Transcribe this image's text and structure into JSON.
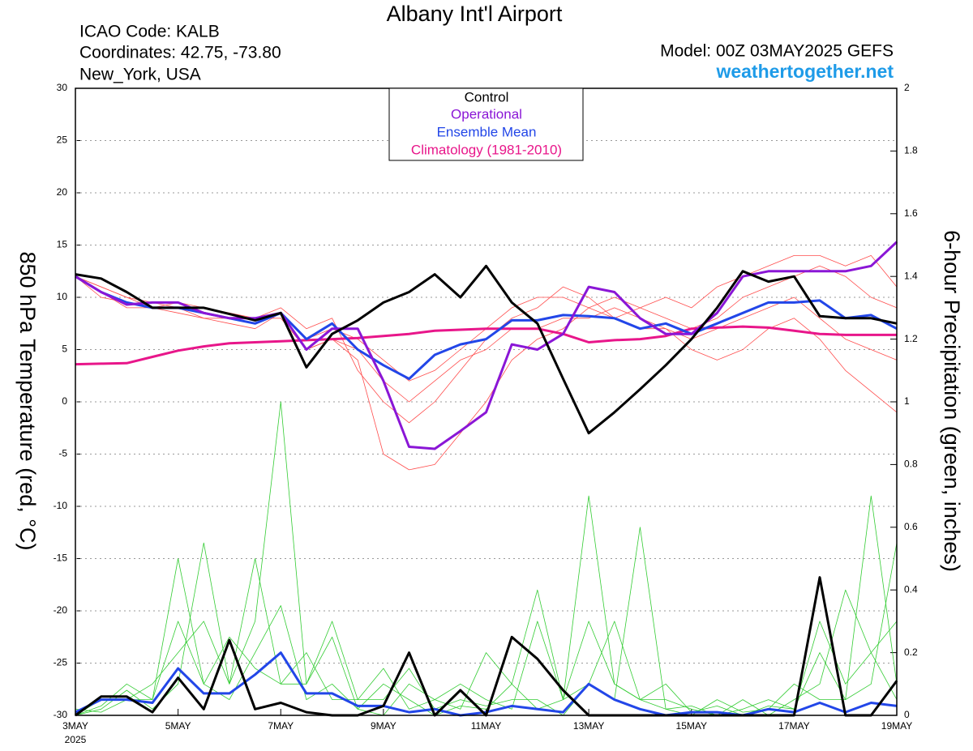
{
  "chart_data": {
    "type": "line",
    "title": "Albany Int'l Airport",
    "info": [
      "ICAO Code: KALB",
      "Coordinates: 42.75, -73.80",
      "New_York, USA"
    ],
    "model": "Model: 00Z 03MAY2025 GEFS",
    "site": "weathertogether.net",
    "ylabel": "850 hPa Temperature (red, °C)",
    "y2label": "6-hour Precipitation (green, inches)",
    "year_label": "2025",
    "grid": true,
    "xlim": [
      0,
      16
    ],
    "xticks": [
      {
        "value": 0,
        "label": "3MAY"
      },
      {
        "value": 2,
        "label": "5MAY"
      },
      {
        "value": 4,
        "label": "7MAY"
      },
      {
        "value": 6,
        "label": "9MAY"
      },
      {
        "value": 8,
        "label": "11MAY"
      },
      {
        "value": 10,
        "label": "13MAY"
      },
      {
        "value": 12,
        "label": "15MAY"
      },
      {
        "value": 14,
        "label": "17MAY"
      },
      {
        "value": 16,
        "label": "19MAY"
      }
    ],
    "ylim": [
      -30,
      30
    ],
    "yticks": [
      -30,
      -25,
      -20,
      -15,
      -10,
      -5,
      0,
      5,
      10,
      15,
      20,
      25,
      30
    ],
    "y2lim": [
      0,
      2
    ],
    "y2ticks": [
      0,
      0.2,
      0.4,
      0.6,
      0.8,
      1,
      1.2,
      1.4,
      1.6,
      1.8,
      2
    ],
    "x": [
      0,
      0.5,
      1,
      1.5,
      2,
      2.5,
      3,
      3.5,
      4,
      4.5,
      5,
      5.5,
      6,
      6.5,
      7,
      7.5,
      8,
      8.5,
      9,
      9.5,
      10,
      10.5,
      11,
      11.5,
      12,
      12.5,
      13,
      13.5,
      14,
      14.5,
      15,
      15.5,
      16
    ],
    "series": [
      {
        "color": "#ff4d4d",
        "values": [
          12,
          10,
          9.5,
          9,
          9,
          8.5,
          8,
          8,
          8,
          5,
          6,
          4,
          -5,
          -6.5,
          -6,
          -3,
          0,
          4,
          6,
          7,
          9,
          10,
          9,
          8,
          7,
          8,
          10,
          11,
          12,
          13,
          12,
          10,
          9
        ]
      },
      {
        "color": "#ff4d4d",
        "values": [
          12,
          11,
          10,
          9,
          8.5,
          8,
          8,
          7.5,
          8.5,
          6,
          7,
          6,
          4,
          2,
          3,
          5,
          7,
          9,
          10,
          10,
          9,
          8,
          7,
          7,
          6,
          7,
          8,
          9,
          10,
          8,
          6,
          5,
          4
        ]
      },
      {
        "color": "#ff4d4d",
        "values": [
          12,
          10.5,
          9,
          9,
          9.5,
          9,
          8.5,
          8,
          9,
          7,
          8,
          3,
          0,
          -2,
          0,
          3,
          6,
          8,
          9,
          11,
          10,
          8,
          9,
          10,
          9,
          11,
          12,
          13,
          14,
          14,
          13,
          14,
          11
        ]
      },
      {
        "color": "#ff4d4d",
        "values": [
          12,
          11,
          10,
          9.5,
          9,
          8,
          7.5,
          7,
          8.5,
          5,
          6,
          5,
          2,
          0,
          2,
          4,
          5,
          7,
          7,
          8,
          8,
          9,
          8,
          7,
          5,
          4,
          5,
          7,
          8,
          6,
          3,
          1,
          -1
        ]
      },
      {
        "color": "#33cc33",
        "axis": "y2",
        "values": [
          0,
          0.03,
          0.1,
          0.05,
          0.5,
          0.1,
          0.05,
          0.2,
          0.35,
          0.05,
          0.1,
          0.02,
          0.1,
          0.05,
          0,
          0.03,
          0.02,
          0.1,
          0.02,
          0.05,
          0.7,
          0.1,
          0.05,
          0.02,
          0.03,
          0,
          0.02,
          0.05,
          0.02,
          0.3,
          0.1,
          0.2,
          0.05
        ]
      },
      {
        "color": "#33cc33",
        "axis": "y2",
        "values": [
          0,
          0.05,
          0.05,
          0.1,
          0.2,
          0.3,
          0.1,
          0.5,
          0.1,
          0.2,
          0.05,
          0.05,
          0.15,
          0.02,
          0.05,
          0.1,
          0.05,
          0.02,
          0.3,
          0.05,
          0.1,
          0.05,
          0.6,
          0.02,
          0,
          0.05,
          0.01,
          0.02,
          0.1,
          0.05,
          0.05,
          0.7,
          0.1
        ]
      },
      {
        "color": "#33cc33",
        "axis": "y2",
        "values": [
          0,
          0.02,
          0.08,
          0.02,
          0.1,
          0.55,
          0.1,
          0.3,
          1.0,
          0.1,
          0.3,
          0.05,
          0.05,
          0.15,
          0.02,
          0.05,
          0.03,
          0.05,
          0.05,
          0,
          0.1,
          0.3,
          0.05,
          0.05,
          0.02,
          0,
          0.05,
          0,
          0.05,
          0.1,
          0.4,
          0.2,
          0.3
        ]
      },
      {
        "color": "#33cc33",
        "axis": "y2",
        "values": [
          0.02,
          0.01,
          0.05,
          0.05,
          0.3,
          0.1,
          0.25,
          0.15,
          0.1,
          0.1,
          0.25,
          0.02,
          0,
          0.1,
          0.05,
          0.02,
          0.2,
          0.1,
          0.4,
          0.05,
          0.3,
          0.1,
          0.05,
          0.1,
          0.01,
          0.03,
          0,
          0.03,
          0.02,
          0.2,
          0.05,
          0.1,
          0.55
        ]
      },
      {
        "color": "#2246e8",
        "axis": "y2",
        "values": [
          0.01,
          0.05,
          0.05,
          0.04,
          0.15,
          0.07,
          0.07,
          0.13,
          0.2,
          0.07,
          0.07,
          0.03,
          0.03,
          0.01,
          0.02,
          0,
          0.01,
          0.03,
          0.02,
          0.01,
          0.1,
          0.05,
          0.02,
          0,
          0.01,
          0.01,
          0,
          0.02,
          0.01,
          0.04,
          0.01,
          0.04,
          0.03
        ]
      },
      {
        "color": "#000000",
        "axis": "y2",
        "values": [
          0,
          0.06,
          0.06,
          0.01,
          0.12,
          0.02,
          0.24,
          0.02,
          0.04,
          0.01,
          0,
          0,
          0.03,
          0.2,
          0,
          0.08,
          0,
          0.25,
          0.18,
          0.08,
          0,
          0,
          0,
          0,
          0,
          0,
          0,
          0,
          0,
          0.44,
          0,
          0,
          0.11
        ]
      },
      {
        "name": "Climatology (1981-2010)",
        "color": "#e8168a",
        "values": [
          3.6,
          3.65,
          3.7,
          4.3,
          4.9,
          5.3,
          5.6,
          5.7,
          5.8,
          5.9,
          6.0,
          6.1,
          6.3,
          6.5,
          6.8,
          6.9,
          7.0,
          7.0,
          7.0,
          6.5,
          5.7,
          5.9,
          6.0,
          6.3,
          7.0,
          7.1,
          7.2,
          7.1,
          6.8,
          6.5,
          6.4,
          6.4,
          6.4
        ]
      },
      {
        "name": "Ensemble Mean",
        "color": "#2246e8",
        "values": [
          12,
          10.5,
          9.5,
          9,
          9,
          8.5,
          8,
          7.5,
          8.5,
          6,
          7.5,
          5,
          3.5,
          2.2,
          4.5,
          5.5,
          6,
          7.8,
          7.8,
          8.3,
          8.2,
          8,
          7,
          7.5,
          6.5,
          7.5,
          8.5,
          9.5,
          9.5,
          9.7,
          8,
          8.3,
          7
        ]
      },
      {
        "name": "Operational",
        "color": "#8a16d6",
        "values": [
          12,
          10.5,
          9.3,
          9.5,
          9.5,
          8.5,
          8,
          8,
          8.5,
          5,
          7,
          7,
          2,
          -4.3,
          -4.5,
          -2.8,
          -1,
          5.5,
          5,
          6.5,
          11,
          10.5,
          8,
          6.5,
          6.5,
          8.5,
          12,
          12.5,
          12.5,
          12.5,
          12.5,
          13,
          15.3
        ]
      },
      {
        "name": "Control",
        "color": "#000000",
        "values": [
          12.2,
          11.8,
          10.5,
          9,
          9,
          9,
          8.4,
          7.8,
          8.5,
          3.3,
          6.5,
          7.8,
          9.5,
          10.5,
          12.2,
          10,
          13,
          9.5,
          7.5,
          2.2,
          -3,
          -1,
          1.2,
          3.5,
          6,
          9,
          12.5,
          11.5,
          12,
          8.2,
          8,
          8,
          7.5
        ]
      }
    ]
  }
}
